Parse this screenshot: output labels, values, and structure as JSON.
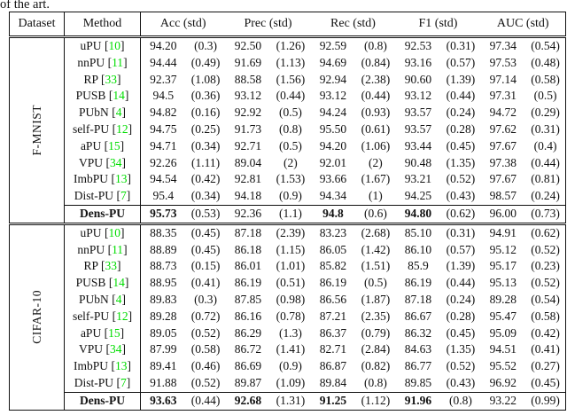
{
  "page": {
    "top_text": "of the art."
  },
  "colors": {
    "citation_green": "#00dd00"
  },
  "table": {
    "headers": [
      "Dataset",
      "Method",
      "Acc (std)",
      "Prec (std)",
      "Rec (std)",
      "F1 (std)",
      "AUC (std)"
    ],
    "metric_keys": [
      "acc",
      "prec",
      "rec",
      "f1",
      "auc"
    ],
    "sections": [
      {
        "dataset": "F-MNIST",
        "rows": [
          {
            "method": "uPU",
            "cite": "10",
            "bold_method": false,
            "cells": [
              {
                "v": "94.20",
                "s": "(0.3)",
                "b": false
              },
              {
                "v": "92.50",
                "s": "(1.26)",
                "b": false
              },
              {
                "v": "92.59",
                "s": "(0.8)",
                "b": false
              },
              {
                "v": "92.53",
                "s": "(0.31)",
                "b": false
              },
              {
                "v": "97.34",
                "s": "(0.54)",
                "b": false
              }
            ]
          },
          {
            "method": "nnPU",
            "cite": "11",
            "bold_method": false,
            "cells": [
              {
                "v": "94.44",
                "s": "(0.49)",
                "b": false
              },
              {
                "v": "91.69",
                "s": "(1.13)",
                "b": false
              },
              {
                "v": "94.69",
                "s": "(0.84)",
                "b": false
              },
              {
                "v": "93.16",
                "s": "(0.57)",
                "b": false
              },
              {
                "v": "97.53",
                "s": "(0.48)",
                "b": false
              }
            ]
          },
          {
            "method": "RP",
            "cite": "33",
            "bold_method": false,
            "cells": [
              {
                "v": "92.37",
                "s": "(1.08)",
                "b": false
              },
              {
                "v": "88.58",
                "s": "(1.56)",
                "b": false
              },
              {
                "v": "92.94",
                "s": "(2.38)",
                "b": false
              },
              {
                "v": "90.60",
                "s": "(1.39)",
                "b": false
              },
              {
                "v": "97.14",
                "s": "(0.58)",
                "b": false
              }
            ]
          },
          {
            "method": "PUSB",
            "cite": "14",
            "bold_method": false,
            "cells": [
              {
                "v": "94.5",
                "s": "(0.36)",
                "b": false
              },
              {
                "v": "93.12",
                "s": "(0.44)",
                "b": false
              },
              {
                "v": "93.12",
                "s": "(0.44)",
                "b": false
              },
              {
                "v": "93.12",
                "s": "(0.44)",
                "b": false
              },
              {
                "v": "97.31",
                "s": "(0.5)",
                "b": false
              }
            ]
          },
          {
            "method": "PUbN",
            "cite": "4",
            "bold_method": false,
            "cells": [
              {
                "v": "94.82",
                "s": "(0.16)",
                "b": false
              },
              {
                "v": "92.92",
                "s": "(0.5)",
                "b": false
              },
              {
                "v": "94.24",
                "s": "(0.93)",
                "b": false
              },
              {
                "v": "93.57",
                "s": "(0.24)",
                "b": false
              },
              {
                "v": "94.72",
                "s": "(0.29)",
                "b": false
              }
            ]
          },
          {
            "method": "self-PU",
            "cite": "12",
            "bold_method": false,
            "cells": [
              {
                "v": "94.75",
                "s": "(0.25)",
                "b": false
              },
              {
                "v": "91.73",
                "s": "(0.8)",
                "b": false
              },
              {
                "v": "95.50",
                "s": "(0.61)",
                "b": false
              },
              {
                "v": "93.57",
                "s": "(0.28)",
                "b": false
              },
              {
                "v": "97.62",
                "s": "(0.31)",
                "b": false
              }
            ]
          },
          {
            "method": "aPU",
            "cite": "15",
            "bold_method": false,
            "cells": [
              {
                "v": "94.71",
                "s": "(0.34)",
                "b": false
              },
              {
                "v": "92.71",
                "s": "(0.5)",
                "b": false
              },
              {
                "v": "94.20",
                "s": "(1.06)",
                "b": false
              },
              {
                "v": "93.44",
                "s": "(0.45)",
                "b": false
              },
              {
                "v": "97.67",
                "s": "(0.4)",
                "b": false
              }
            ]
          },
          {
            "method": "VPU",
            "cite": "34",
            "bold_method": false,
            "cells": [
              {
                "v": "92.26",
                "s": "(1.11)",
                "b": false
              },
              {
                "v": "89.04",
                "s": "(2)",
                "b": false
              },
              {
                "v": "92.01",
                "s": "(2)",
                "b": false
              },
              {
                "v": "90.48",
                "s": "(1.35)",
                "b": false
              },
              {
                "v": "97.38",
                "s": "(0.44)",
                "b": false
              }
            ]
          },
          {
            "method": "ImbPU",
            "cite": "13",
            "bold_method": false,
            "cells": [
              {
                "v": "94.54",
                "s": "(0.42)",
                "b": false
              },
              {
                "v": "92.81",
                "s": "(1.53)",
                "b": false
              },
              {
                "v": "93.66",
                "s": "(1.67)",
                "b": false
              },
              {
                "v": "93.21",
                "s": "(0.52)",
                "b": false
              },
              {
                "v": "97.67",
                "s": "(0.81)",
                "b": false
              }
            ]
          },
          {
            "method": "Dist-PU",
            "cite": "7",
            "bold_method": false,
            "cells": [
              {
                "v": "95.4",
                "s": "(0.34)",
                "b": false
              },
              {
                "v": "94.18",
                "s": "(0.9)",
                "b": false
              },
              {
                "v": "94.34",
                "s": "(1)",
                "b": false
              },
              {
                "v": "94.25",
                "s": "(0.43)",
                "b": false
              },
              {
                "v": "98.57",
                "s": "(0.24)",
                "b": false
              }
            ]
          },
          {
            "method": "Dens-PU",
            "cite": null,
            "bold_method": true,
            "cells": [
              {
                "v": "95.73",
                "s": "(0.53)",
                "b": true
              },
              {
                "v": "92.36",
                "s": "(1.1)",
                "b": false
              },
              {
                "v": "94.8",
                "s": "(0.6)",
                "b": true
              },
              {
                "v": "94.80",
                "s": "(0.62)",
                "b": true
              },
              {
                "v": "96.00",
                "s": "(0.73)",
                "b": false
              }
            ]
          }
        ]
      },
      {
        "dataset": "CIFAR-10",
        "rows": [
          {
            "method": "uPU",
            "cite": "10",
            "bold_method": false,
            "cells": [
              {
                "v": "88.35",
                "s": "(0.45)",
                "b": false
              },
              {
                "v": "87.18",
                "s": "(2.39)",
                "b": false
              },
              {
                "v": "83.23",
                "s": "(2.68)",
                "b": false
              },
              {
                "v": "85.10",
                "s": "(0.31)",
                "b": false
              },
              {
                "v": "94.91",
                "s": "(0.62)",
                "b": false
              }
            ]
          },
          {
            "method": "nnPU",
            "cite": "11",
            "bold_method": false,
            "cells": [
              {
                "v": "88.89",
                "s": "(0.45)",
                "b": false
              },
              {
                "v": "86.18",
                "s": "(1.15)",
                "b": false
              },
              {
                "v": "86.05",
                "s": "(1.42)",
                "b": false
              },
              {
                "v": "86.10",
                "s": "(0.57)",
                "b": false
              },
              {
                "v": "95.12",
                "s": "(0.52)",
                "b": false
              }
            ]
          },
          {
            "method": "RP",
            "cite": "33",
            "bold_method": false,
            "cells": [
              {
                "v": "88.73",
                "s": "(0.15)",
                "b": false
              },
              {
                "v": "86.01",
                "s": "(1.01)",
                "b": false
              },
              {
                "v": "85.82",
                "s": "(1.51)",
                "b": false
              },
              {
                "v": "85.9",
                "s": "(1.39)",
                "b": false
              },
              {
                "v": "95.17",
                "s": "(0.23)",
                "b": false
              }
            ]
          },
          {
            "method": "PUSB",
            "cite": "14",
            "bold_method": false,
            "cells": [
              {
                "v": "88.95",
                "s": "(0.41)",
                "b": false
              },
              {
                "v": "86.19",
                "s": "(0.51)",
                "b": false
              },
              {
                "v": "86.19",
                "s": "(0.5)",
                "b": false
              },
              {
                "v": "86.19",
                "s": "(0.44)",
                "b": false
              },
              {
                "v": "95.13",
                "s": "(0.52)",
                "b": false
              }
            ]
          },
          {
            "method": "PUbN",
            "cite": "4",
            "bold_method": false,
            "cells": [
              {
                "v": "89.83",
                "s": "(0.3)",
                "b": false
              },
              {
                "v": "87.85",
                "s": "(0.98)",
                "b": false
              },
              {
                "v": "86.56",
                "s": "(1.87)",
                "b": false
              },
              {
                "v": "87.18",
                "s": "(0.24)",
                "b": false
              },
              {
                "v": "89.28",
                "s": "(0.54)",
                "b": false
              }
            ]
          },
          {
            "method": "self-PU",
            "cite": "12",
            "bold_method": false,
            "cells": [
              {
                "v": "89.28",
                "s": "(0.72)",
                "b": false
              },
              {
                "v": "86.16",
                "s": "(0.78)",
                "b": false
              },
              {
                "v": "87.21",
                "s": "(2.35)",
                "b": false
              },
              {
                "v": "86.67",
                "s": "(0.28)",
                "b": false
              },
              {
                "v": "95.47",
                "s": "(0.58)",
                "b": false
              }
            ]
          },
          {
            "method": "aPU",
            "cite": "15",
            "bold_method": false,
            "cells": [
              {
                "v": "89.05",
                "s": "(0.52)",
                "b": false
              },
              {
                "v": "86.29",
                "s": "(1.3)",
                "b": false
              },
              {
                "v": "86.37",
                "s": "(0.79)",
                "b": false
              },
              {
                "v": "86.32",
                "s": "(0.45)",
                "b": false
              },
              {
                "v": "95.09",
                "s": "(0.42)",
                "b": false
              }
            ]
          },
          {
            "method": "VPU",
            "cite": "34",
            "bold_method": false,
            "cells": [
              {
                "v": "87.99",
                "s": "(0.58)",
                "b": false
              },
              {
                "v": "86.72",
                "s": "(1.41)",
                "b": false
              },
              {
                "v": "82.71",
                "s": "(2.84)",
                "b": false
              },
              {
                "v": "84.63",
                "s": "(1.35)",
                "b": false
              },
              {
                "v": "94.51",
                "s": "(0.41)",
                "b": false
              }
            ]
          },
          {
            "method": "ImbPU",
            "cite": "13",
            "bold_method": false,
            "cells": [
              {
                "v": "89.41",
                "s": "(0.46)",
                "b": false
              },
              {
                "v": "86.69",
                "s": "(0.9)",
                "b": false
              },
              {
                "v": "86.87",
                "s": "(0.82)",
                "b": false
              },
              {
                "v": "86.77",
                "s": "(0.52)",
                "b": false
              },
              {
                "v": "95.52",
                "s": "(0.27)",
                "b": false
              }
            ]
          },
          {
            "method": "Dist-PU",
            "cite": "7",
            "bold_method": false,
            "cells": [
              {
                "v": "91.88",
                "s": "(0.52)",
                "b": false
              },
              {
                "v": "89.87",
                "s": "(1.09)",
                "b": false
              },
              {
                "v": "89.84",
                "s": "(0.8)",
                "b": false
              },
              {
                "v": "89.85",
                "s": "(0.43)",
                "b": false
              },
              {
                "v": "96.92",
                "s": "(0.45)",
                "b": false
              }
            ]
          },
          {
            "method": "Dens-PU",
            "cite": null,
            "bold_method": true,
            "cells": [
              {
                "v": "93.63",
                "s": "(0.44)",
                "b": true
              },
              {
                "v": "92.68",
                "s": "(1.31)",
                "b": true
              },
              {
                "v": "91.25",
                "s": "(1.12)",
                "b": true
              },
              {
                "v": "91.96",
                "s": "(0.8)",
                "b": true
              },
              {
                "v": "93.22",
                "s": "(0.99)",
                "b": false
              }
            ]
          }
        ]
      }
    ]
  }
}
